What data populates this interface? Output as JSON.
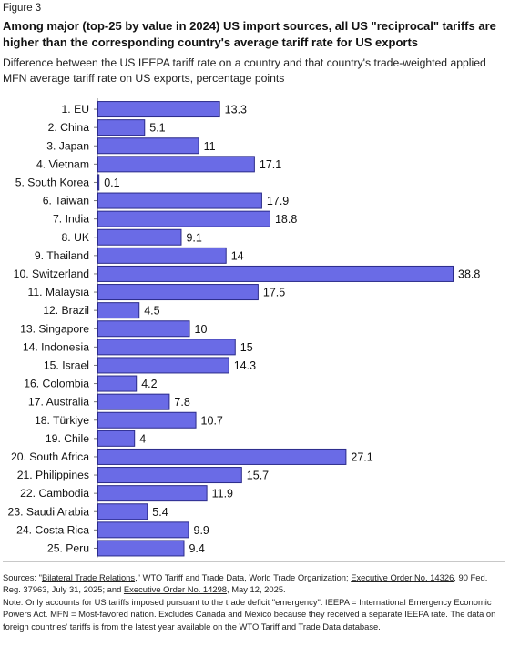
{
  "figure_label": "Figure 3",
  "title": "Among major (top-25 by value in 2024) US import sources, all US \"reciprocal\" tariffs are higher than the corresponding country's average tariff rate for US exports",
  "subtitle": "Difference between the US IEEPA tariff rate on a country and that country's trade-weighted applied MFN average tariff rate on US exports, percentage points",
  "colors": {
    "bar_fill": "#6a6be6",
    "bar_stroke": "#2b2b8a",
    "axis": "#777777"
  },
  "chart_data": {
    "type": "bar",
    "orientation": "horizontal",
    "categories": [
      "1. EU",
      "2. China",
      "3. Japan",
      "4. Vietnam",
      "5. South Korea",
      "6. Taiwan",
      "7. India",
      "8. UK",
      "9. Thailand",
      "10. Switzerland",
      "11. Malaysia",
      "12. Brazil",
      "13. Singapore",
      "14. Indonesia",
      "15. Israel",
      "16. Colombia",
      "17. Australia",
      "18. Türkiye",
      "19. Chile",
      "20. South Africa",
      "21. Philippines",
      "22. Cambodia",
      "23. Saudi Arabia",
      "24. Costa Rica",
      "25. Peru"
    ],
    "values": [
      13.3,
      5.1,
      11,
      17.1,
      0.1,
      17.9,
      18.8,
      9.1,
      14,
      38.8,
      17.5,
      4.5,
      10,
      15,
      14.3,
      4.2,
      7.8,
      10.7,
      4,
      27.1,
      15.7,
      11.9,
      5.4,
      9.9,
      9.4
    ],
    "value_labels": [
      "13.3",
      "5.1",
      "11",
      "17.1",
      "0.1",
      "17.9",
      "18.8",
      "9.1",
      "14",
      "38.8",
      "17.5",
      "4.5",
      "10",
      "15",
      "14.3",
      "4.2",
      "7.8",
      "10.7",
      "4",
      "27.1",
      "15.7",
      "11.9",
      "5.4",
      "9.9",
      "9.4"
    ],
    "xlim": [
      0,
      38.8
    ],
    "xlabel": "",
    "ylabel": "",
    "grid": false,
    "legend": "none"
  },
  "sources": {
    "prefix": "Sources: \"",
    "link1": "Bilateral Trade Relations",
    "mid1": ",\" WTO Tariff and Trade Data, World Trade Organization; ",
    "link2": "Executive Order No. 14326",
    "mid2": ", 90 Fed. Reg. 37963, July 31, 2025; and ",
    "link3": "Executive Order No. 14298",
    "suffix": ", May 12, 2025."
  },
  "note": "Note: Only accounts for US tariffs imposed pursuant to the trade deficit \"emergency\". IEEPA = International Emergency Economic Powers Act. MFN = Most-favored nation. Excludes Canada and Mexico because they received a separate IEEPA rate. The data on foreign countries' tariffs is from the latest year available on the WTO Tariff and Trade Data database."
}
